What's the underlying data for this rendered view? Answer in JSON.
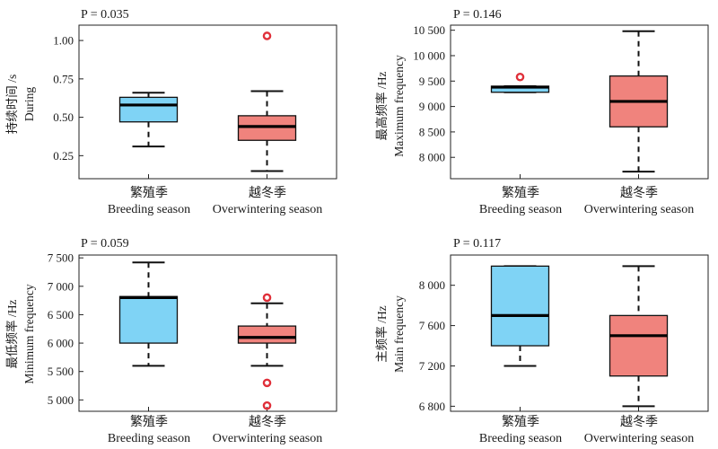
{
  "colors": {
    "breeding_fill": "#7fd3f5",
    "overwintering_fill": "#f0837d",
    "outlier": "#e0303a",
    "axis": "#222222"
  },
  "chart_data": [
    {
      "type": "boxplot",
      "p_label": "P = 0.035",
      "ylabel_cn": "持续时间 /s",
      "ylabel_en": "During",
      "ylim": [
        0.1,
        1.1
      ],
      "yticks": [
        0.25,
        0.5,
        0.75,
        1.0
      ],
      "ytick_labels": [
        "0.25",
        "0.50",
        "0.75",
        "1.00"
      ],
      "categories": [
        {
          "cn": "繁殖季",
          "en": "Breeding season"
        },
        {
          "cn": "越冬季",
          "en": "Overwintering season"
        }
      ],
      "boxes": [
        {
          "whisker_low": 0.31,
          "q1": 0.47,
          "median": 0.58,
          "q3": 0.63,
          "whisker_high": 0.66,
          "outliers": []
        },
        {
          "whisker_low": 0.15,
          "q1": 0.35,
          "median": 0.44,
          "q3": 0.51,
          "whisker_high": 0.67,
          "outliers": [
            1.03
          ]
        }
      ]
    },
    {
      "type": "boxplot",
      "p_label": "P = 0.146",
      "ylabel_cn": "最高频率 /Hz",
      "ylabel_en": "Maximum frequency",
      "ylim": [
        7580,
        10600
      ],
      "yticks": [
        8000,
        8500,
        9000,
        9500,
        10000,
        10500
      ],
      "ytick_labels": [
        "8 000",
        "8 500",
        "9 000",
        "9 500",
        "10 000",
        "10 500"
      ],
      "categories": [
        {
          "cn": "繁殖季",
          "en": "Breeding season"
        },
        {
          "cn": "越冬季",
          "en": "Overwintering season"
        }
      ],
      "boxes": [
        {
          "whisker_low": 9280,
          "q1": 9280,
          "median": 9380,
          "q3": 9400,
          "whisker_high": 9400,
          "outliers": [
            9580
          ]
        },
        {
          "whisker_low": 7720,
          "q1": 8600,
          "median": 9100,
          "q3": 9600,
          "whisker_high": 10480,
          "outliers": []
        }
      ]
    },
    {
      "type": "boxplot",
      "p_label": "P = 0.059",
      "ylabel_cn": "最低频率 /Hz",
      "ylabel_en": "Minimum frequency",
      "ylim": [
        4800,
        7550
      ],
      "yticks": [
        5000,
        5500,
        6000,
        6500,
        7000,
        7500
      ],
      "ytick_labels": [
        "5 000",
        "5 500",
        "6 000",
        "6 500",
        "7 000",
        "7 500"
      ],
      "categories": [
        {
          "cn": "繁殖季",
          "en": "Breeding season"
        },
        {
          "cn": "越冬季",
          "en": "Overwintering season"
        }
      ],
      "boxes": [
        {
          "whisker_low": 5600,
          "q1": 6000,
          "median": 6800,
          "q3": 6820,
          "whisker_high": 7420,
          "outliers": []
        },
        {
          "whisker_low": 5600,
          "q1": 6000,
          "median": 6100,
          "q3": 6300,
          "whisker_high": 6700,
          "outliers": [
            6800,
            5300,
            4900
          ]
        }
      ]
    },
    {
      "type": "boxplot",
      "p_label": "P = 0.117",
      "ylabel_cn": "主频率 /Hz",
      "ylabel_en": "Main frequency",
      "ylim": [
        6750,
        8300
      ],
      "yticks": [
        6800,
        7200,
        7600,
        8000
      ],
      "ytick_labels": [
        "6 800",
        "7 200",
        "7 600",
        "8 000"
      ],
      "categories": [
        {
          "cn": "繁殖季",
          "en": "Breeding season"
        },
        {
          "cn": "越冬季",
          "en": "Overwintering season"
        }
      ],
      "boxes": [
        {
          "whisker_low": 7200,
          "q1": 7400,
          "median": 7700,
          "q3": 8190,
          "whisker_high": 8190,
          "outliers": []
        },
        {
          "whisker_low": 6800,
          "q1": 7100,
          "median": 7500,
          "q3": 7700,
          "whisker_high": 8190,
          "outliers": []
        }
      ]
    }
  ]
}
